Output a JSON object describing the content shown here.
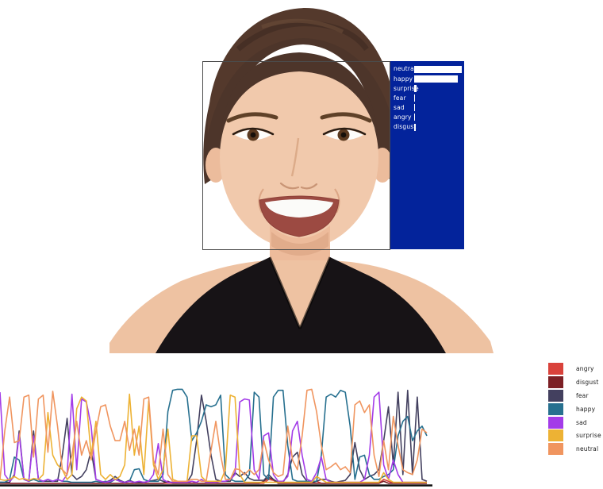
{
  "overlay": {
    "panel_color": "#03239b",
    "bar_color": "#ffffff",
    "box_border_color": "#4b4b4b",
    "items": [
      {
        "label": "neutral",
        "value": 0.97
      },
      {
        "label": "happy",
        "value": 0.89
      },
      {
        "label": "surprise",
        "value": 0.05
      },
      {
        "label": "fear",
        "value": 0.02
      },
      {
        "label": "sad",
        "value": 0.02
      },
      {
        "label": "angry",
        "value": 0.02
      },
      {
        "label": "disgust",
        "value": 0.025
      }
    ]
  },
  "legend": {
    "items": [
      {
        "label": "angry",
        "color": "#d9423b"
      },
      {
        "label": "disgust",
        "color": "#7c2025"
      },
      {
        "label": "fear",
        "color": "#43405f"
      },
      {
        "label": "happy",
        "color": "#27708f"
      },
      {
        "label": "sad",
        "color": "#a33ce8"
      },
      {
        "label": "surprise",
        "color": "#edb234"
      },
      {
        "label": "neutral",
        "color": "#f0955f"
      }
    ]
  },
  "chart_data": {
    "type": "line",
    "title": "",
    "xlabel": "",
    "ylabel": "",
    "x_range": [
      0,
      89
    ],
    "ylim": [
      0,
      1
    ],
    "grid": false,
    "legend_position": "right",
    "axis_color": "#111111",
    "series": [
      {
        "name": "angry",
        "color": "#d9423b",
        "values": [
          0.01,
          0.01,
          0.01,
          0.01,
          0.01,
          0.01,
          0.01,
          0.01,
          0.01,
          0.01,
          0.01,
          0.01,
          0.01,
          0.01,
          0.01,
          0.01,
          0.01,
          0.01,
          0.01,
          0.01,
          0.01,
          0.01,
          0.01,
          0.01,
          0.01,
          0.01,
          0.01,
          0.01,
          0.01,
          0.01,
          0.01,
          0.01,
          0.01,
          0.01,
          0.01,
          0.01,
          0.01,
          0.01,
          0.01,
          0.01,
          0.03,
          0.01,
          0.01,
          0.01,
          0.01,
          0.01,
          0.01,
          0.01,
          0.01,
          0.01,
          0.01,
          0.01,
          0.01,
          0.01,
          0.01,
          0.01,
          0.05,
          0.04,
          0.01,
          0.01,
          0.01,
          0.01,
          0.01,
          0.01,
          0.01,
          0.01,
          0.03,
          0.01,
          0.01,
          0.01,
          0.01,
          0.01,
          0.01,
          0.01,
          0.01,
          0.01,
          0.01,
          0.01,
          0.01,
          0.01,
          0.05,
          0.03,
          0.01,
          0.01,
          0.01,
          0.01,
          0.01,
          0.01,
          0.01,
          0.01
        ]
      },
      {
        "name": "disgust",
        "color": "#7c2025",
        "values": [
          0.01,
          0.01,
          0.01,
          0.01,
          0.01,
          0.01,
          0.01,
          0.01,
          0.01,
          0.01,
          0.01,
          0.01,
          0.01,
          0.01,
          0.01,
          0.01,
          0.01,
          0.01,
          0.01,
          0.01,
          0.01,
          0.01,
          0.01,
          0.01,
          0.01,
          0.01,
          0.01,
          0.01,
          0.01,
          0.01,
          0.01,
          0.01,
          0.01,
          0.01,
          0.01,
          0.03,
          0.01,
          0.01,
          0.01,
          0.01,
          0.01,
          0.01,
          0.01,
          0.01,
          0.01,
          0.01,
          0.01,
          0.01,
          0.01,
          0.01,
          0.01,
          0.01,
          0.01,
          0.01,
          0.01,
          0.03,
          0.07,
          0.05,
          0.01,
          0.01,
          0.01,
          0.01,
          0.01,
          0.01,
          0.01,
          0.01,
          0.01,
          0.01,
          0.01,
          0.01,
          0.01,
          0.01,
          0.01,
          0.01,
          0.01,
          0.01,
          0.01,
          0.01,
          0.01,
          0.01,
          0.03,
          0.01,
          0.01,
          0.01,
          0.01,
          0.01,
          0.01,
          0.01,
          0.01,
          0.01
        ]
      },
      {
        "name": "fear",
        "color": "#43405f",
        "values": [
          0.02,
          0.02,
          0.02,
          0.1,
          0.55,
          0.05,
          0.03,
          0.55,
          0.05,
          0.03,
          0.03,
          0.03,
          0.03,
          0.3,
          0.68,
          0.1,
          0.05,
          0.08,
          0.15,
          0.35,
          0.05,
          0.03,
          0.02,
          0.04,
          0.08,
          0.04,
          0.02,
          0.04,
          0.02,
          0.02,
          0.02,
          0.03,
          0.04,
          0.05,
          0.03,
          0.02,
          0.02,
          0.02,
          0.02,
          0.02,
          0.1,
          0.45,
          0.92,
          0.65,
          0.3,
          0.05,
          0.03,
          0.03,
          0.03,
          0.12,
          0.08,
          0.12,
          0.06,
          0.04,
          0.04,
          0.04,
          0.1,
          0.05,
          0.02,
          0.02,
          0.1,
          0.28,
          0.33,
          0.1,
          0.03,
          0.02,
          0.03,
          0.05,
          0.05,
          0.03,
          0.02,
          0.03,
          0.04,
          0.1,
          0.43,
          0.15,
          0.05,
          0.08,
          0.1,
          0.15,
          0.45,
          0.8,
          0.2,
          0.95,
          0.1,
          0.97,
          0.1,
          0.9,
          0.05,
          0.03
        ]
      },
      {
        "name": "happy",
        "color": "#27708f",
        "values": [
          0.02,
          0.02,
          0.05,
          0.28,
          0.25,
          0.05,
          0.03,
          0.05,
          0.03,
          0.03,
          0.05,
          0.03,
          0.05,
          0.03,
          0.03,
          0.02,
          0.02,
          0.02,
          0.02,
          0.02,
          0.03,
          0.02,
          0.03,
          0.02,
          0.05,
          0.03,
          0.02,
          0.03,
          0.15,
          0.16,
          0.05,
          0.03,
          0.03,
          0.03,
          0.1,
          0.75,
          0.97,
          0.98,
          0.98,
          0.9,
          0.45,
          0.53,
          0.65,
          0.82,
          0.8,
          0.82,
          0.92,
          0.1,
          0.05,
          0.03,
          0.03,
          0.03,
          0.1,
          0.95,
          0.9,
          0.1,
          0.05,
          0.9,
          0.97,
          0.97,
          0.4,
          0.05,
          0.03,
          0.03,
          0.03,
          0.03,
          0.03,
          0.3,
          0.9,
          0.93,
          0.9,
          0.97,
          0.95,
          0.6,
          0.05,
          0.28,
          0.3,
          0.1,
          0.05,
          0.05,
          0.08,
          0.1,
          0.15,
          0.5,
          0.65,
          0.7,
          0.45,
          0.55,
          0.6,
          0.5
        ]
      },
      {
        "name": "sad",
        "color": "#a33ce8",
        "values": [
          0.95,
          0.1,
          0.03,
          0.08,
          0.52,
          0.05,
          0.03,
          0.5,
          0.05,
          0.03,
          0.05,
          0.03,
          0.05,
          0.03,
          0.1,
          0.93,
          0.15,
          0.88,
          0.85,
          0.6,
          0.05,
          0.03,
          0.02,
          0.03,
          0.05,
          0.03,
          0.02,
          0.03,
          0.02,
          0.03,
          0.02,
          0.03,
          0.1,
          0.42,
          0.05,
          0.02,
          0.02,
          0.02,
          0.02,
          0.02,
          0.03,
          0.02,
          0.05,
          0.02,
          0.02,
          0.02,
          0.03,
          0.03,
          0.05,
          0.1,
          0.85,
          0.88,
          0.87,
          0.15,
          0.05,
          0.5,
          0.53,
          0.1,
          0.03,
          0.03,
          0.08,
          0.55,
          0.65,
          0.3,
          0.05,
          0.03,
          0.12,
          0.28,
          0.05,
          0.02,
          0.02,
          0.02,
          0.02,
          0.02,
          0.02,
          0.02,
          0.05,
          0.3,
          0.9,
          0.95,
          0.2,
          0.05,
          0.25,
          0.1,
          0.02,
          0.02,
          0.02,
          0.02,
          0.02,
          0.02
        ]
      },
      {
        "name": "surprise",
        "color": "#edb234",
        "values": [
          0.05,
          0.04,
          0.05,
          0.08,
          0.05,
          0.06,
          0.04,
          0.06,
          0.05,
          0.1,
          0.74,
          0.3,
          0.2,
          0.15,
          0.05,
          0.1,
          0.78,
          0.9,
          0.86,
          0.3,
          0.65,
          0.1,
          0.05,
          0.1,
          0.05,
          0.08,
          0.2,
          0.93,
          0.3,
          0.6,
          0.1,
          0.86,
          0.2,
          0.05,
          0.15,
          0.57,
          0.05,
          0.03,
          0.03,
          0.03,
          0.5,
          0.5,
          0.08,
          0.03,
          0.03,
          0.03,
          0.03,
          0.15,
          0.92,
          0.9,
          0.1,
          0.02,
          0.02,
          0.02,
          0.02,
          0.02,
          0.02,
          0.02,
          0.02,
          0.02,
          0.02,
          0.02,
          0.02,
          0.02,
          0.02,
          0.02,
          0.08,
          0.05,
          0.02,
          0.02,
          0.02,
          0.02,
          0.02,
          0.02,
          0.02,
          0.02,
          0.02,
          0.02,
          0.02,
          0.02,
          0.12,
          0.05,
          0.02,
          0.02,
          0.02,
          0.02,
          0.02,
          0.02,
          0.02,
          0.02
        ]
      },
      {
        "name": "neutral",
        "color": "#f0955f",
        "values": [
          0.05,
          0.55,
          0.9,
          0.43,
          0.45,
          0.9,
          0.92,
          0.28,
          0.88,
          0.92,
          0.33,
          0.96,
          0.6,
          0.15,
          0.1,
          0.3,
          0.65,
          0.3,
          0.45,
          0.25,
          0.55,
          0.8,
          0.82,
          0.6,
          0.45,
          0.45,
          0.65,
          0.35,
          0.57,
          0.3,
          0.88,
          0.9,
          0.25,
          0.1,
          0.57,
          0.1,
          0.03,
          0.03,
          0.03,
          0.03,
          0.05,
          0.05,
          0.03,
          0.03,
          0.35,
          0.65,
          0.3,
          0.05,
          0.05,
          0.16,
          0.15,
          0.1,
          0.15,
          0.1,
          0.15,
          0.45,
          0.25,
          0.12,
          0.08,
          0.1,
          0.6,
          0.25,
          0.15,
          0.5,
          0.97,
          0.98,
          0.75,
          0.4,
          0.15,
          0.18,
          0.22,
          0.15,
          0.18,
          0.12,
          0.82,
          0.86,
          0.74,
          0.82,
          0.3,
          0.08,
          0.45,
          0.15,
          0.7,
          0.4,
          0.15,
          0.12,
          0.1,
          0.25,
          0.57,
          0.53
        ]
      }
    ]
  }
}
